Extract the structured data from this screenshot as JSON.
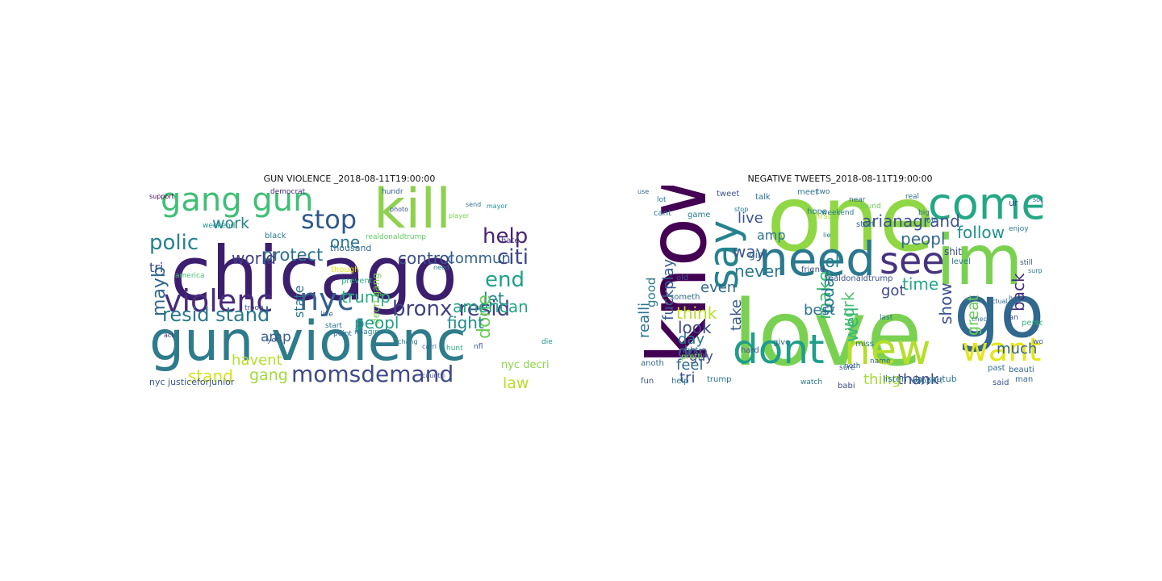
{
  "figure": {
    "left_title": "GUN VIOLENCE _2018-08-11T19:00:00",
    "right_title": "NEGATIVE TWEETS_2018-08-11T19:00:00"
  },
  "left_words": [
    {
      "text": "chicago",
      "color": "#3b1e6e"
    },
    {
      "text": "gun violenc",
      "color": "#2e7b8c"
    },
    {
      "text": "kill",
      "color": "#8fd14f"
    },
    {
      "text": "gang gun",
      "color": "#3fbf76"
    },
    {
      "text": "stop",
      "color": "#31588b"
    },
    {
      "text": "violenc",
      "color": "#472c7a"
    },
    {
      "text": "nyc",
      "color": "#35608d"
    },
    {
      "text": "help",
      "color": "#482374"
    },
    {
      "text": "end",
      "color": "#1fa187"
    },
    {
      "text": "citi",
      "color": "#414487"
    },
    {
      "text": "bronx resid",
      "color": "#424086"
    },
    {
      "text": "resid stand",
      "color": "#2a788e"
    },
    {
      "text": "momsdemand",
      "color": "#3e4a89"
    },
    {
      "text": "polic",
      "color": "#26828e"
    },
    {
      "text": "protect",
      "color": "#2d708e"
    },
    {
      "text": "world",
      "color": "#433e85"
    },
    {
      "text": "control",
      "color": "#3b528b"
    },
    {
      "text": "commun",
      "color": "#33628d"
    },
    {
      "text": "one",
      "color": "#2c728e"
    },
    {
      "text": "work",
      "color": "#25848e"
    },
    {
      "text": "tri",
      "color": "#3d4e8a"
    },
    {
      "text": "mayb",
      "color": "#31688e"
    },
    {
      "text": "let",
      "color": "#27808e"
    },
    {
      "text": "done",
      "color": "#6ccd5a"
    },
    {
      "text": "fight",
      "color": "#238a8d"
    },
    {
      "text": "american",
      "color": "#22a785"
    },
    {
      "text": "trump",
      "color": "#28ae80"
    },
    {
      "text": "peopl",
      "color": "#1f9e89"
    },
    {
      "text": "havent",
      "color": "#b5de2b"
    },
    {
      "text": "amp",
      "color": "#355f8d"
    },
    {
      "text": "stand",
      "color": "#d2e21b"
    },
    {
      "text": "gang",
      "color": "#a0da39"
    },
    {
      "text": "law",
      "color": "#b8de29"
    },
    {
      "text": "state",
      "color": "#2c718e"
    },
    {
      "text": "nyc decri",
      "color": "#8bd646"
    },
    {
      "text": "nyc justiceforjunior",
      "color": "#39568c"
    },
    {
      "text": "thousand",
      "color": "#31688e"
    },
    {
      "text": "decri gang",
      "color": "#7ad151"
    },
    {
      "text": "prevent",
      "color": "#29af7f"
    },
    {
      "text": "though",
      "color": "#e5e419"
    },
    {
      "text": "black",
      "color": "#2a788e"
    },
    {
      "text": "democrat",
      "color": "#482878"
    },
    {
      "text": "hate",
      "color": "#46337e"
    },
    {
      "text": "countri",
      "color": "#3e4989"
    },
    {
      "text": "realdonaldtrump",
      "color": "#5ec962"
    },
    {
      "text": "hundr",
      "color": "#33638d"
    },
    {
      "text": "weekend",
      "color": "#21918c"
    },
    {
      "text": "imagin",
      "color": "#287c8e"
    },
    {
      "text": "support",
      "color": "#440154"
    },
    {
      "text": "photo",
      "color": "#3b528b"
    },
    {
      "text": "send",
      "color": "#2c728e"
    },
    {
      "text": "player",
      "color": "#7ad151"
    },
    {
      "text": "mayor",
      "color": "#21918c"
    },
    {
      "text": "live",
      "color": "#365d8d"
    },
    {
      "text": "start",
      "color": "#2c728e"
    },
    {
      "text": "point",
      "color": "#31688e"
    },
    {
      "text": "nfl",
      "color": "#39558c"
    },
    {
      "text": "hunt",
      "color": "#2db27d"
    },
    {
      "text": "need",
      "color": "#2a788e"
    },
    {
      "text": "chang",
      "color": "#2a788e"
    },
    {
      "text": "carri",
      "color": "#31688e"
    },
    {
      "text": "america",
      "color": "#4ac16d"
    },
    {
      "text": "troop",
      "color": "#3e4989"
    },
    {
      "text": "yet",
      "color": "#3b528b"
    },
    {
      "text": "act",
      "color": "#472d7b"
    },
    {
      "text": "die",
      "color": "#21918c"
    }
  ],
  "right_words": [
    {
      "text": "love",
      "color": "#7ad151"
    },
    {
      "text": "know",
      "color": "#440154"
    },
    {
      "text": "one",
      "color": "#8fd744"
    },
    {
      "text": "im",
      "color": "#7ad151"
    },
    {
      "text": "go",
      "color": "#31688e"
    },
    {
      "text": "come",
      "color": "#22a884"
    },
    {
      "text": "need",
      "color": "#2a788e"
    },
    {
      "text": "see",
      "color": "#46327e"
    },
    {
      "text": "say",
      "color": "#26828e"
    },
    {
      "text": "dont",
      "color": "#1f9e89"
    },
    {
      "text": "new",
      "color": "#b5de2b"
    },
    {
      "text": "want",
      "color": "#e5e419"
    },
    {
      "text": "arianagrand",
      "color": "#3b528b"
    },
    {
      "text": "follow",
      "color": "#21918c"
    },
    {
      "text": "peopl",
      "color": "#31688e"
    },
    {
      "text": "fuckplay",
      "color": "#355f8d"
    },
    {
      "text": "live",
      "color": "#3b528b"
    },
    {
      "text": "amp",
      "color": "#2c728e"
    },
    {
      "text": "way",
      "color": "#39568c"
    },
    {
      "text": "never",
      "color": "#2a788e"
    },
    {
      "text": "lol",
      "color": "#26828e"
    },
    {
      "text": "time",
      "color": "#22a785"
    },
    {
      "text": "got",
      "color": "#3e4a89"
    },
    {
      "text": "even",
      "color": "#31688e"
    },
    {
      "text": "great",
      "color": "#6ccd5a"
    },
    {
      "text": "show",
      "color": "#3b528b"
    },
    {
      "text": "back",
      "color": "#472d7b"
    },
    {
      "text": "much",
      "color": "#33638d"
    },
    {
      "text": "make",
      "color": "#3fbc73"
    },
    {
      "text": "think",
      "color": "#b8de29"
    },
    {
      "text": "today",
      "color": "#2a788e"
    },
    {
      "text": "look",
      "color": "#3e4989"
    },
    {
      "text": "best",
      "color": "#2c718e"
    },
    {
      "text": "take",
      "color": "#38598c"
    },
    {
      "text": "work",
      "color": "#4ac16d"
    },
    {
      "text": "well",
      "color": "#35b779"
    },
    {
      "text": "don",
      "color": "#365c8d"
    },
    {
      "text": "day",
      "color": "#2a788e"
    },
    {
      "text": "guy",
      "color": "#3e4a89"
    },
    {
      "text": "feel",
      "color": "#31688e"
    },
    {
      "text": "thank",
      "color": "#404688"
    },
    {
      "text": "thing",
      "color": "#a5db36"
    },
    {
      "text": "tri",
      "color": "#3b528b"
    },
    {
      "text": "realli",
      "color": "#2c728e"
    },
    {
      "text": "good",
      "color": "#2a788e"
    },
    {
      "text": "realdonaldtrump",
      "color": "#3b528b"
    },
    {
      "text": "game",
      "color": "#287c8e"
    },
    {
      "text": "shit",
      "color": "#3e4989"
    },
    {
      "text": "girl",
      "color": "#31688e"
    },
    {
      "text": "talk",
      "color": "#2c728e"
    },
    {
      "text": "friend",
      "color": "#3b528b"
    },
    {
      "text": "hope",
      "color": "#2a788e"
    },
    {
      "text": "first",
      "color": "#b5de2b"
    },
    {
      "text": "start",
      "color": "#31688e"
    },
    {
      "text": "level",
      "color": "#2c728e"
    },
    {
      "text": "person",
      "color": "#35b779"
    },
    {
      "text": "fun",
      "color": "#3b528b"
    },
    {
      "text": "help",
      "color": "#2c728e"
    },
    {
      "text": "anoth",
      "color": "#31688e"
    },
    {
      "text": "right",
      "color": "#2c728e"
    },
    {
      "text": "hard",
      "color": "#3e4989"
    },
    {
      "text": "give",
      "color": "#31688e"
    },
    {
      "text": "pretti",
      "color": "#7ad151"
    },
    {
      "text": "miss",
      "color": "#2a788e"
    },
    {
      "text": "word",
      "color": "#3b528b"
    },
    {
      "text": "man",
      "color": "#31688e"
    },
    {
      "text": "trump",
      "color": "#2c728e"
    },
    {
      "text": "said",
      "color": "#3b528b"
    },
    {
      "text": "listen via youtub",
      "color": "#2c728e"
    },
    {
      "text": "watch",
      "color": "#2a788e"
    },
    {
      "text": "support",
      "color": "#31688e"
    },
    {
      "text": "babi",
      "color": "#3e4989"
    },
    {
      "text": "someth",
      "color": "#31688e"
    },
    {
      "text": "real",
      "color": "#2c728e"
    },
    {
      "text": "job",
      "color": "#2a788e"
    },
    {
      "text": "big",
      "color": "#31688e"
    },
    {
      "text": "tweet",
      "color": "#3b528b"
    },
    {
      "text": "meet",
      "color": "#2c728e"
    },
    {
      "text": "two",
      "color": "#31688e"
    },
    {
      "text": "weekend",
      "color": "#2a788e"
    },
    {
      "text": "found",
      "color": "#6ccd5a"
    },
    {
      "text": "ur",
      "color": "#3b528b"
    },
    {
      "text": "cant",
      "color": "#2c728e"
    },
    {
      "text": "use",
      "color": "#31688e"
    },
    {
      "text": "lot",
      "color": "#2a788e"
    },
    {
      "text": "old",
      "color": "#3b528b"
    },
    {
      "text": "name",
      "color": "#31688e"
    },
    {
      "text": "sound",
      "color": "#2c728e"
    },
    {
      "text": "enjoy",
      "color": "#2a788e"
    },
    {
      "text": "beauti",
      "color": "#31688e"
    },
    {
      "text": "still",
      "color": "#3b528b"
    },
    {
      "text": "past",
      "color": "#2c728e"
    },
    {
      "text": "stop",
      "color": "#2a788e"
    },
    {
      "text": "actual",
      "color": "#31688e"
    },
    {
      "text": "check",
      "color": "#2c728e"
    },
    {
      "text": "hour",
      "color": "#31688e"
    },
    {
      "text": "surpris",
      "color": "#2a788e"
    },
    {
      "text": "ian",
      "color": "#3b528b"
    },
    {
      "text": "noth",
      "color": "#31688e"
    },
    {
      "text": "last",
      "color": "#2c728e"
    },
    {
      "text": "near",
      "color": "#31688e"
    },
    {
      "text": "lie",
      "color": "#2a788e"
    },
    {
      "text": "sure",
      "color": "#3b528b"
    }
  ]
}
